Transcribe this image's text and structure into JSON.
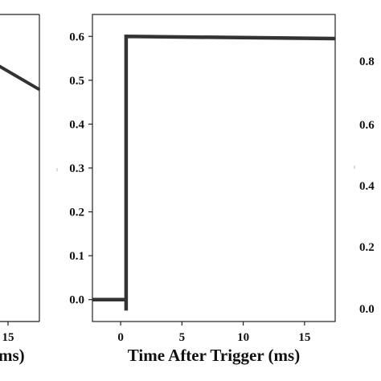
{
  "chart_data": [
    {
      "type": "line",
      "position": "left-partial",
      "x_ticks": [
        "15"
      ],
      "xlabel_fragment": "ms)",
      "series": [
        {
          "x": [
            13.2,
            17.5
          ],
          "y": [
            0.55,
            0.48
          ],
          "color": "#333333"
        }
      ],
      "xlim": [
        -2,
        17.5
      ],
      "ylim": [
        -0.05,
        0.65
      ]
    },
    {
      "type": "line",
      "position": "center",
      "xlabel": "Time After Trigger (ms)",
      "ylabel": "",
      "x_ticks": [
        "0",
        "5",
        "10",
        "15"
      ],
      "y_ticks": [
        "0.0",
        "0.1",
        "0.2",
        "0.3",
        "0.4",
        "0.5",
        "0.6"
      ],
      "xlim": [
        -2.3,
        17.5
      ],
      "ylim": [
        -0.05,
        0.65
      ],
      "series": [
        {
          "color": "#333333",
          "x": [
            -2.3,
            0.0,
            0.3,
            0.45,
            0.45,
            0.45,
            17.5
          ],
          "y": [
            0.0,
            0.0,
            0.0,
            0.0,
            -0.025,
            0.6,
            0.595
          ]
        }
      ],
      "grid": false
    },
    {
      "type": "line",
      "position": "right-partial",
      "y_ticks": [
        "0.8",
        "0.6",
        "0.4",
        "0.2",
        "0.0"
      ]
    }
  ],
  "colors": {
    "line": "#333333",
    "axis": "#222222"
  }
}
